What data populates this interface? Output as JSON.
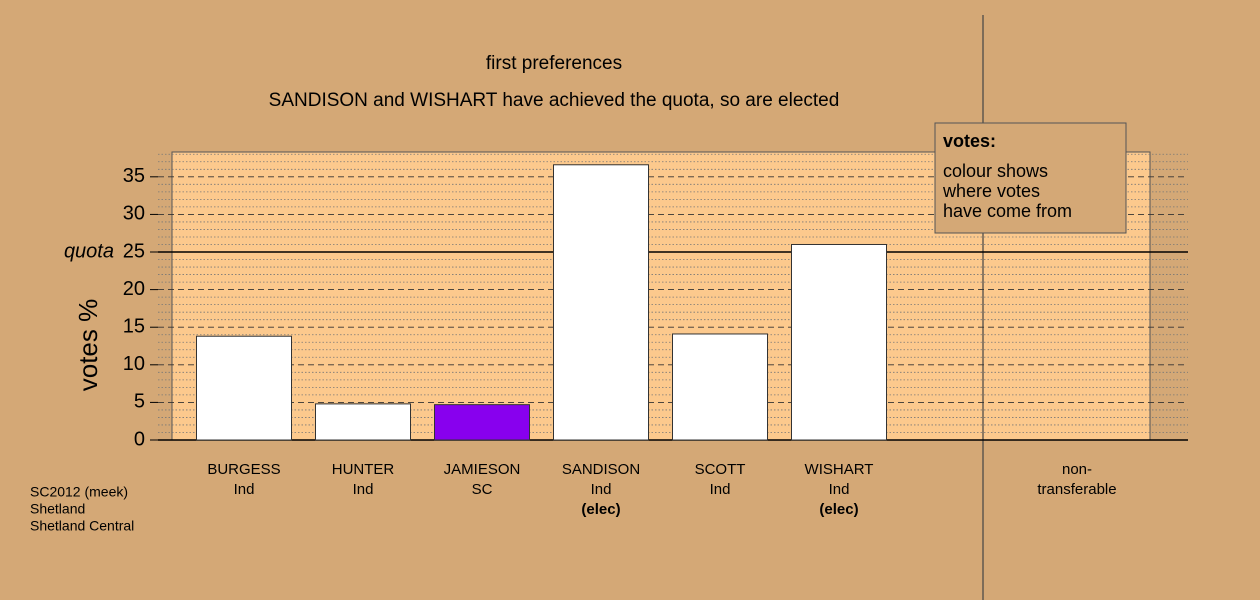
{
  "chart_data": {
    "type": "bar",
    "title": "first preferences",
    "subtitle": "SANDISON and WISHART have achieved the quota, so are elected",
    "y_label": "votes %",
    "categories": [
      "BURGESS",
      "HUNTER",
      "JAMIESON",
      "SANDISON",
      "SCOTT",
      "WISHART",
      null,
      "non-"
    ],
    "parties": [
      "Ind",
      "Ind",
      "SC",
      "Ind",
      "Ind",
      "Ind",
      null,
      "transferable"
    ],
    "notes": [
      null,
      null,
      null,
      "(elec)",
      null,
      "(elec)",
      null,
      null
    ],
    "values": [
      13.8,
      4.8,
      4.7,
      36.6,
      14.1,
      26.0,
      null,
      0
    ],
    "colors": [
      "#ffffff",
      "#ffffff",
      "#8800ee",
      "#ffffff",
      "#ffffff",
      "#ffffff",
      null,
      "#ffffff"
    ],
    "ylim": [
      0,
      38.3
    ],
    "yticks": [
      0,
      5,
      10,
      15,
      20,
      25,
      30,
      35
    ],
    "minor_yticks": [
      1,
      2,
      3,
      4,
      6,
      7,
      8,
      9,
      11,
      12,
      13,
      14,
      16,
      17,
      18,
      19,
      21,
      22,
      23,
      24,
      26,
      27,
      28,
      29,
      31,
      32,
      33,
      34,
      36,
      37,
      38
    ],
    "quota": {
      "label": "quota",
      "value": 25
    },
    "legend": {
      "title": "votes:",
      "lines": [
        "colour shows",
        "where votes",
        "have come from"
      ]
    },
    "footer": [
      "SC2012 (meek)",
      "Shetland",
      "Shetland Central"
    ]
  }
}
